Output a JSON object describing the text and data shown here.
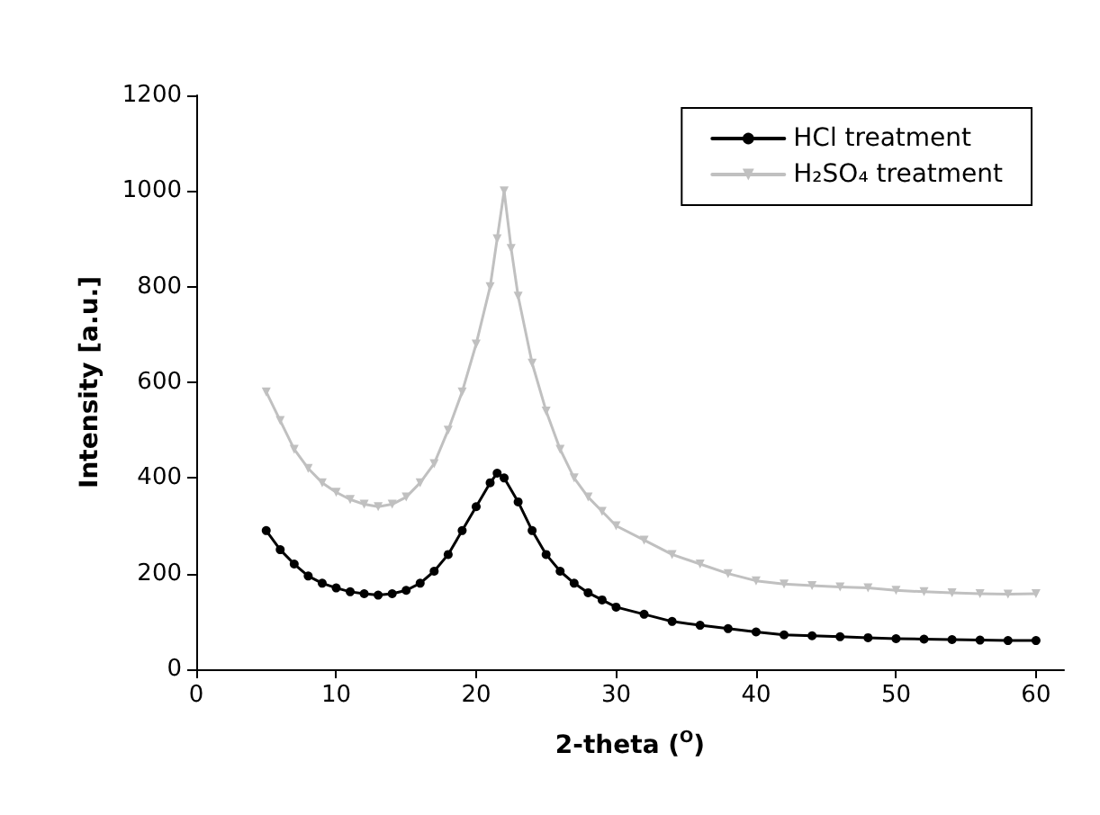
{
  "chart_data": {
    "type": "line",
    "xlabel": "2-theta ($^{O}$)",
    "ylabel": "Intensity [a.u.]",
    "xlim": [
      0,
      62
    ],
    "xticks": [
      0,
      10,
      20,
      30,
      40,
      50,
      60
    ],
    "ylim": [
      0,
      1200
    ],
    "yticks": [
      0,
      200,
      400,
      600,
      800,
      1000,
      1200
    ],
    "grid": false,
    "legend": "top right",
    "series": [
      {
        "name": "HCl treatment",
        "color": "#000000",
        "marker": "circle",
        "x": [
          5,
          6,
          7,
          8,
          9,
          10,
          11,
          12,
          13,
          14,
          15,
          16,
          17,
          18,
          19,
          20,
          21,
          21.5,
          22,
          23,
          24,
          25,
          26,
          27,
          28,
          29,
          30,
          32,
          34,
          36,
          38,
          40,
          42,
          44,
          46,
          48,
          50,
          52,
          54,
          56,
          58,
          60
        ],
        "values": [
          290,
          250,
          220,
          195,
          180,
          170,
          162,
          158,
          155,
          158,
          165,
          180,
          205,
          240,
          290,
          340,
          390,
          410,
          400,
          350,
          290,
          240,
          205,
          180,
          160,
          145,
          130,
          115,
          100,
          92,
          85,
          78,
          72,
          70,
          68,
          66,
          64,
          63,
          62,
          61,
          60,
          60
        ]
      },
      {
        "name": "H₂SO₄ treatment",
        "color": "#c0c0c0",
        "marker": "triangle",
        "x": [
          5,
          6,
          7,
          8,
          9,
          10,
          11,
          12,
          13,
          14,
          15,
          16,
          17,
          18,
          19,
          20,
          21,
          21.5,
          22,
          22.5,
          23,
          24,
          25,
          26,
          27,
          28,
          29,
          30,
          32,
          34,
          36,
          38,
          40,
          42,
          44,
          46,
          48,
          50,
          52,
          54,
          56,
          58,
          60
        ],
        "values": [
          580,
          520,
          460,
          420,
          390,
          370,
          355,
          345,
          340,
          345,
          360,
          390,
          430,
          500,
          580,
          680,
          800,
          900,
          1000,
          880,
          780,
          640,
          540,
          460,
          400,
          360,
          330,
          300,
          270,
          240,
          220,
          200,
          185,
          178,
          175,
          172,
          170,
          165,
          162,
          160,
          158,
          157,
          158
        ]
      }
    ]
  }
}
